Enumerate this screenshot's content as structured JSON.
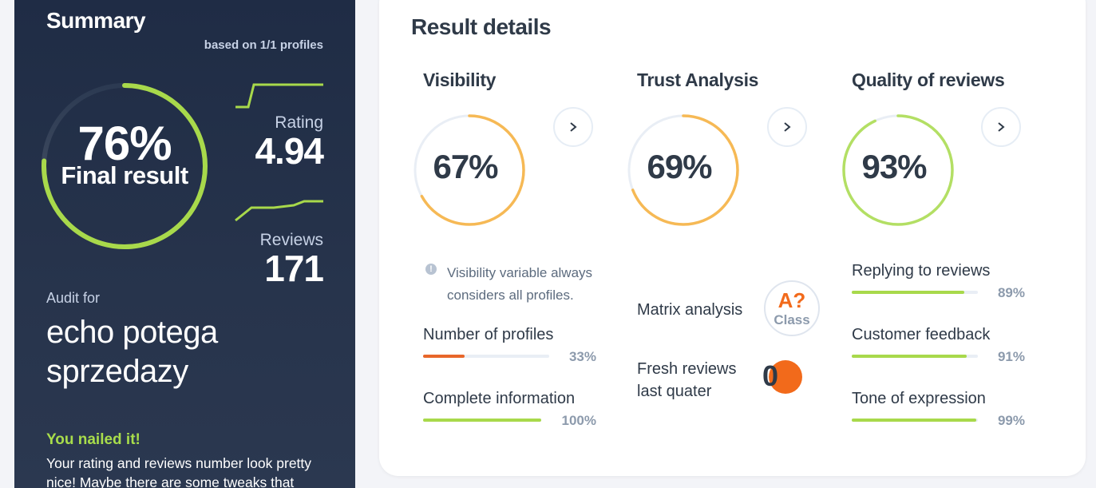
{
  "summary": {
    "title": "Summary",
    "based_on": "based on 1/1 profiles",
    "final_pct": "76%",
    "final_label": "Final result",
    "final_value": 0.76,
    "rating_label": "Rating",
    "rating_value": "4.94",
    "reviews_label": "Reviews",
    "reviews_value": "171",
    "audit_for": "Audit for",
    "audit_name": "echo potega sprzedazy",
    "nailed_title": "You nailed it!",
    "nailed_text": "Your rating and reviews number look pretty nice! Maybe there are some tweaks that"
  },
  "details": {
    "title": "Result details",
    "visibility": {
      "title": "Visibility",
      "pct": "67%",
      "value": 0.67,
      "note": "Visibility variable always considers all profiles.",
      "metrics": [
        {
          "label": "Number of profiles",
          "pct": "33%",
          "value": 0.33,
          "color": "#e8672a"
        },
        {
          "label": "Complete information",
          "pct": "100%",
          "value": 1.0,
          "color": "#a8d94b"
        }
      ]
    },
    "trust": {
      "title": "Trust Analysis",
      "pct": "69%",
      "value": 0.69,
      "matrix_label": "Matrix analysis",
      "class_grade": "A?",
      "class_word": "Class",
      "fresh_label": "Fresh reviews last quater",
      "fresh_value": "0"
    },
    "quality": {
      "title": "Quality of reviews",
      "pct": "93%",
      "value": 0.93,
      "metrics": [
        {
          "label": "Replying to reviews",
          "pct": "89%",
          "value": 0.89,
          "color": "#a8d94b"
        },
        {
          "label": "Customer feedback",
          "pct": "91%",
          "value": 0.91,
          "color": "#a8d94b"
        },
        {
          "label": "Tone of expression",
          "pct": "99%",
          "value": 0.99,
          "color": "#a8d94b"
        }
      ]
    }
  },
  "colors": {
    "orange_ring": "#f6b955",
    "green_ring": "#b3df64",
    "summary_ring": "#a8d94b",
    "track": "#e9eef5"
  },
  "icons": {
    "arrow": "chevron-right-icon",
    "info": "info-icon"
  }
}
